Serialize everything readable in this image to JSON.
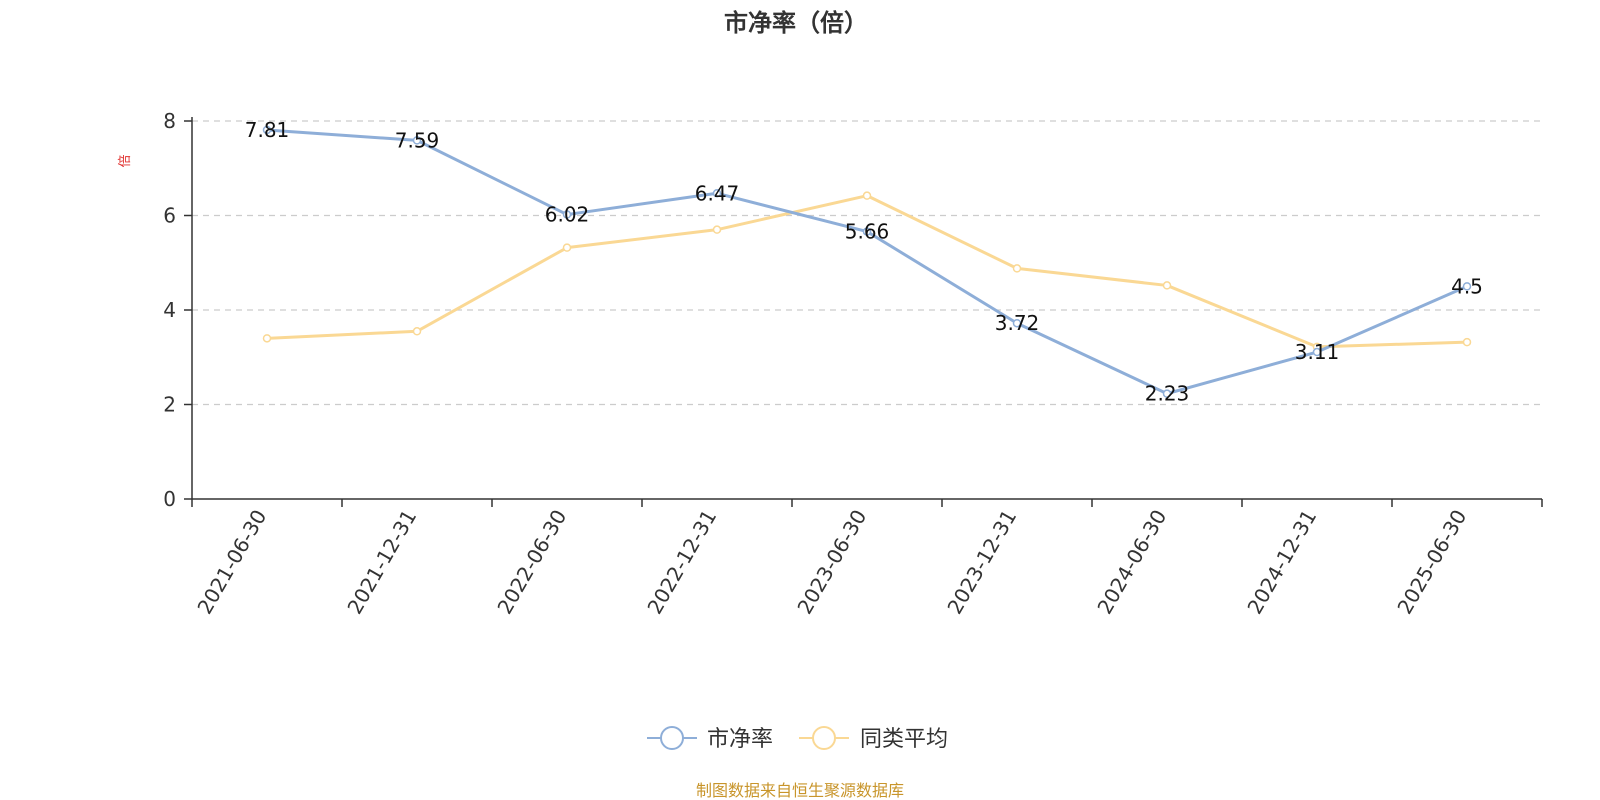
{
  "chart_data": {
    "type": "line",
    "title": "市净率（倍）",
    "ylabel": "倍",
    "xlabel": "",
    "ylim": [
      0,
      8
    ],
    "yticks": [
      0,
      2,
      4,
      6,
      8
    ],
    "grid": true,
    "legend_position": "bottom-center",
    "categories": [
      "2021-06-30",
      "2021-12-31",
      "2022-06-30",
      "2022-12-31",
      "2023-06-30",
      "2023-12-31",
      "2024-06-30",
      "2024-12-31",
      "2025-06-30"
    ],
    "series": [
      {
        "name": "市净率",
        "color": "#8eaed8",
        "values": [
          7.81,
          7.59,
          6.02,
          6.47,
          5.66,
          3.72,
          2.23,
          3.11,
          4.5
        ],
        "data_labels": [
          "7.81",
          "7.59",
          "6.02",
          "6.47",
          "5.66",
          "3.72",
          "2.23",
          "3.11",
          "4.5"
        ]
      },
      {
        "name": "同类平均",
        "color": "#fad894",
        "values": [
          3.4,
          3.55,
          5.32,
          5.7,
          6.42,
          4.88,
          4.52,
          3.22,
          3.32
        ]
      }
    ]
  },
  "colors": {
    "axis": "#333333",
    "grid": "#cccccc",
    "unit": "#e0312f",
    "source": "#c8952b"
  },
  "source_text": "制图数据来自恒生聚源数据库"
}
